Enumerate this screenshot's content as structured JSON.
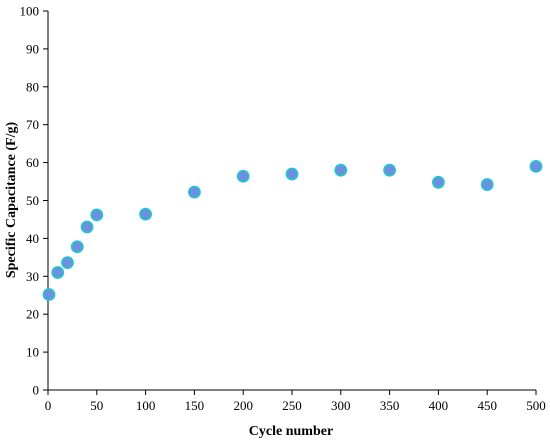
{
  "chart_data": {
    "type": "scatter",
    "title": "",
    "xlabel": "Cycle number",
    "ylabel": "Specific Capacitance (F/g)",
    "xlim": [
      0,
      500
    ],
    "ylim": [
      0,
      100
    ],
    "xticks": [
      0,
      50,
      100,
      150,
      200,
      250,
      300,
      350,
      400,
      450,
      500
    ],
    "yticks": [
      0,
      10,
      20,
      30,
      40,
      50,
      60,
      70,
      80,
      90,
      100
    ],
    "grid": false,
    "legend": "none",
    "marker_fill": "#6e8fe0",
    "marker_edge": "#1fc6cf",
    "series": [
      {
        "x": [
          1,
          10,
          20,
          30,
          40,
          50,
          100,
          150,
          200,
          250,
          300,
          350,
          400,
          450,
          500
        ],
        "y": [
          25.2,
          31.0,
          33.6,
          37.8,
          43.0,
          46.2,
          46.4,
          52.2,
          56.4,
          57.0,
          58.0,
          58.0,
          54.8,
          54.2,
          59.0
        ]
      }
    ]
  }
}
